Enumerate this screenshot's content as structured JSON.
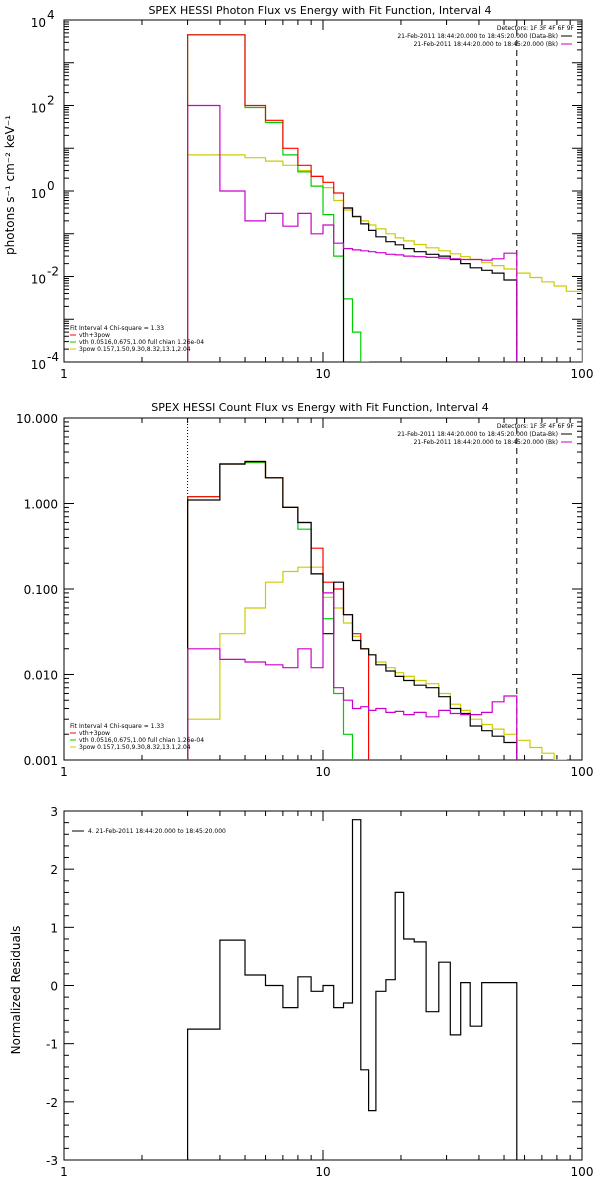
{
  "chart_data": [
    {
      "type": "line",
      "title": "SPEX HESSI Photon Flux vs Energy with Fit Function, Interval 4",
      "ylabel": "photons s⁻¹ cm⁻² keV⁻¹",
      "x_scale": "log",
      "y_scale": "log",
      "xlim": [
        1,
        100
      ],
      "ylim": [
        0.0001,
        10000
      ],
      "x_ticks": [
        1,
        10,
        100
      ],
      "x_tick_labels": [
        "1",
        "10",
        "100"
      ],
      "y_ticks": [
        0.0001,
        0.01,
        1,
        100,
        10000
      ],
      "y_tick_labels": [
        "10",
        "10",
        "10",
        "10",
        "10"
      ],
      "y_tick_exponents": [
        "-4",
        "-2",
        "0",
        "2",
        "4"
      ],
      "detectors_label": "Detectors: 1F 3F 4F 6F 9F",
      "legend_top": [
        {
          "label": "21-Feb-2011 18:44:20.000 to 18:45:20.000 (Data-Bk)",
          "color": "#000000"
        },
        {
          "label": "21-Feb-2011 18:44:20.000 to 18:45:20.000 (Bk)",
          "color": "#cc00cc"
        }
      ],
      "legend_bottom": [
        {
          "label": "Fit Interval 4   Chi-square = 1.33",
          "color": null
        },
        {
          "label": "vth+3pow",
          "color": "#ff0000"
        },
        {
          "label": "vth 0.0516,0.675,1.00  full chian 1.26e-04",
          "color": "#00cc00"
        },
        {
          "label": "3pow 0.157,1.50,9.30,8.32,13.1,2.04",
          "color": "#cccc00"
        }
      ],
      "dashed_vline_x": 56,
      "series": [
        {
          "name": "Data-Bk",
          "color": "#000000",
          "edges": [
            12,
            13,
            14,
            15,
            16,
            17.5,
            19,
            20.5,
            22.5,
            25,
            28,
            31,
            34,
            37,
            41,
            45,
            50,
            56
          ],
          "values": [
            0.4,
            0.25,
            0.17,
            0.12,
            0.085,
            0.065,
            0.055,
            0.045,
            0.038,
            0.033,
            0.03,
            0.025,
            0.02,
            0.016,
            0.014,
            0.012,
            0.0083
          ]
        },
        {
          "name": "vth+3pow",
          "color": "#ff0000",
          "edges": [
            3,
            4,
            5,
            6,
            7,
            8,
            9,
            10,
            11,
            12,
            13
          ],
          "values": [
            4500,
            4500,
            100,
            45,
            10,
            4,
            2.2,
            1.6,
            0.9,
            0.4,
            0.3
          ]
        },
        {
          "name": "vth",
          "color": "#00cc00",
          "edges": [
            3,
            4,
            5,
            6,
            7,
            8,
            9,
            10,
            11,
            12,
            13,
            14,
            15
          ],
          "values": [
            4500,
            4500,
            90,
            40,
            7,
            2.8,
            1.3,
            0.28,
            0.03,
            0.003,
            0.0005,
            0.0001
          ]
        },
        {
          "name": "3pow",
          "color": "#cccc00",
          "edges": [
            3,
            4,
            5,
            6,
            7,
            8,
            9,
            10,
            11,
            12,
            13,
            14,
            15,
            16,
            17.5,
            19,
            20.5,
            22.5,
            25,
            28,
            31,
            34,
            37,
            41,
            45,
            50,
            56,
            63,
            70,
            78,
            87,
            100
          ],
          "values": [
            7,
            7,
            6,
            5,
            4,
            3,
            2.2,
            1.2,
            0.6,
            0.36,
            0.26,
            0.2,
            0.16,
            0.13,
            0.1,
            0.08,
            0.068,
            0.056,
            0.047,
            0.04,
            0.034,
            0.029,
            0.025,
            0.021,
            0.018,
            0.015,
            0.012,
            0.0095,
            0.0075,
            0.006,
            0.0045
          ]
        },
        {
          "name": "Bk",
          "color": "#cc00cc",
          "edges": [
            3,
            4,
            5,
            6,
            7,
            8,
            9,
            10,
            11,
            12,
            13,
            14,
            15,
            16,
            17.5,
            19,
            20.5,
            22.5,
            25,
            28,
            31,
            34,
            37,
            41,
            45,
            50,
            56
          ],
          "values": [
            100,
            1,
            0.2,
            0.3,
            0.15,
            0.3,
            0.1,
            0.16,
            0.06,
            0.045,
            0.042,
            0.04,
            0.038,
            0.036,
            0.033,
            0.032,
            0.03,
            0.029,
            0.028,
            0.027,
            0.026,
            0.025,
            0.025,
            0.024,
            0.026,
            0.035
          ]
        }
      ]
    },
    {
      "type": "line",
      "title": "SPEX HESSI Count Flux vs Energy with Fit Function, Interval 4",
      "ylabel": "",
      "x_scale": "log",
      "y_scale": "log",
      "xlim": [
        1,
        100
      ],
      "ylim": [
        0.001,
        10
      ],
      "x_ticks": [
        1,
        10,
        100
      ],
      "x_tick_labels": [
        "1",
        "10",
        "100"
      ],
      "y_ticks": [
        0.001,
        0.01,
        0.1,
        1,
        10
      ],
      "y_tick_labels": [
        "0.001",
        "0.010",
        "0.100",
        "1.000",
        "10.000"
      ],
      "detectors_label": "Detectors: 1F 3F 4F 6F 9F",
      "legend_top": [
        {
          "label": "21-Feb-2011 18:44:20.000 to 18:45:20.000 (Data-Bk)",
          "color": "#000000"
        },
        {
          "label": "21-Feb-2011 18:44:20.000 to 18:45:20.000 (Bk)",
          "color": "#cc00cc"
        }
      ],
      "legend_bottom": [
        {
          "label": "Fit Interval 4   Chi-square = 1.33",
          "color": null
        },
        {
          "label": "vth+3pow",
          "color": "#ff0000"
        },
        {
          "label": "vth 0.0516,0.675,1.00  full chian 1.26e-04",
          "color": "#00cc00"
        },
        {
          "label": "3pow 0.157,1.50,9.30,8.32,13.1,2.04",
          "color": "#cccc00"
        }
      ],
      "dotted_vline_x": 3,
      "dashed_vline_x": 56,
      "series": [
        {
          "name": "Data-Bk",
          "color": "#000000",
          "edges": [
            3,
            4,
            5,
            6,
            7,
            8,
            9,
            10,
            11,
            12,
            13,
            14,
            15,
            16,
            17.5,
            19,
            20.5,
            22.5,
            25,
            28,
            31,
            34,
            37,
            41,
            45,
            50,
            56
          ],
          "values": [
            1.1,
            2.9,
            3.1,
            2.0,
            0.9,
            0.6,
            0.15,
            0.03,
            0.12,
            0.05,
            0.025,
            0.02,
            0.017,
            0.013,
            0.011,
            0.0095,
            0.0085,
            0.0075,
            0.007,
            0.0055,
            0.004,
            0.0035,
            0.0025,
            0.0022,
            0.0019,
            0.0016
          ]
        },
        {
          "name": "vth+3pow",
          "color": "#ff0000",
          "edges": [
            3,
            4,
            5,
            6,
            7,
            8,
            9,
            10,
            11,
            12,
            13,
            14,
            15
          ],
          "values": [
            1.2,
            2.9,
            3.1,
            2.0,
            0.9,
            0.6,
            0.3,
            0.12,
            0.1,
            0.05,
            0.03,
            0.02
          ]
        },
        {
          "name": "vth",
          "color": "#00cc00",
          "edges": [
            3,
            4,
            5,
            6,
            7,
            8,
            9,
            10,
            11,
            12,
            13
          ],
          "values": [
            1.2,
            2.9,
            3.0,
            2.0,
            0.9,
            0.5,
            0.15,
            0.045,
            0.006,
            0.002
          ]
        },
        {
          "name": "3pow",
          "color": "#cccc00",
          "edges": [
            3,
            4,
            5,
            6,
            7,
            8,
            9,
            10,
            11,
            12,
            13,
            14,
            15,
            16,
            17.5,
            19,
            20.5,
            22.5,
            25,
            28,
            31,
            34,
            37,
            41,
            45,
            50,
            56,
            63,
            70,
            78,
            87
          ],
          "values": [
            0.003,
            0.03,
            0.06,
            0.12,
            0.16,
            0.18,
            0.18,
            0.08,
            0.06,
            0.04,
            0.028,
            0.02,
            0.017,
            0.014,
            0.012,
            0.0105,
            0.0095,
            0.0085,
            0.0078,
            0.006,
            0.0045,
            0.0038,
            0.003,
            0.0026,
            0.0023,
            0.002,
            0.0017,
            0.0014,
            0.0012,
            0.001
          ]
        },
        {
          "name": "Bk",
          "color": "#cc00cc",
          "edges": [
            3,
            4,
            5,
            6,
            7,
            8,
            9,
            10,
            11,
            12,
            13,
            14,
            15,
            16,
            17.5,
            19,
            20.5,
            22.5,
            25,
            28,
            31,
            34,
            37,
            41,
            45,
            50,
            56
          ],
          "values": [
            0.02,
            0.015,
            0.014,
            0.013,
            0.012,
            0.02,
            0.012,
            0.09,
            0.007,
            0.005,
            0.004,
            0.0042,
            0.0038,
            0.004,
            0.0036,
            0.0037,
            0.0034,
            0.0036,
            0.0032,
            0.0038,
            0.0035,
            0.0034,
            0.0034,
            0.0036,
            0.0048,
            0.0056
          ]
        }
      ]
    },
    {
      "type": "line",
      "title": "",
      "ylabel": "Normalized Residuals",
      "x_scale": "log",
      "y_scale": "linear",
      "xlim": [
        1,
        100
      ],
      "ylim": [
        -3,
        3
      ],
      "x_ticks": [
        1,
        10,
        100
      ],
      "x_tick_labels": [
        "1",
        "10",
        "100"
      ],
      "y_ticks": [
        -3,
        -2,
        -1,
        0,
        1,
        2,
        3
      ],
      "y_tick_labels": [
        "-3",
        "-2",
        "-1",
        "0",
        "1",
        "2",
        "3"
      ],
      "legend_top": [
        {
          "label": "4. 21-Feb-2011 18:44:20.000 to 18:45:20.000",
          "color": "#000000"
        }
      ],
      "series": [
        {
          "name": "4. 21-Feb-2011 18:44:20.000 to 18:45:20.000",
          "color": "#000000",
          "edges": [
            3,
            4,
            5,
            6,
            7,
            8,
            9,
            10,
            11,
            12,
            13,
            14,
            15,
            16,
            17.5,
            19,
            20.5,
            22.5,
            25,
            28,
            31,
            34,
            37,
            41,
            45,
            50,
            56
          ],
          "values": [
            -0.75,
            0.78,
            0.18,
            0.0,
            -0.38,
            0.15,
            -0.1,
            0.0,
            -0.38,
            -0.3,
            2.85,
            -1.45,
            -2.15,
            -0.1,
            0.1,
            1.6,
            0.8,
            0.75,
            -0.45,
            0.4,
            -0.85,
            0.05,
            -0.7,
            0.05,
            0.05,
            0.05
          ],
          "bottom_drop": true
        }
      ]
    }
  ]
}
